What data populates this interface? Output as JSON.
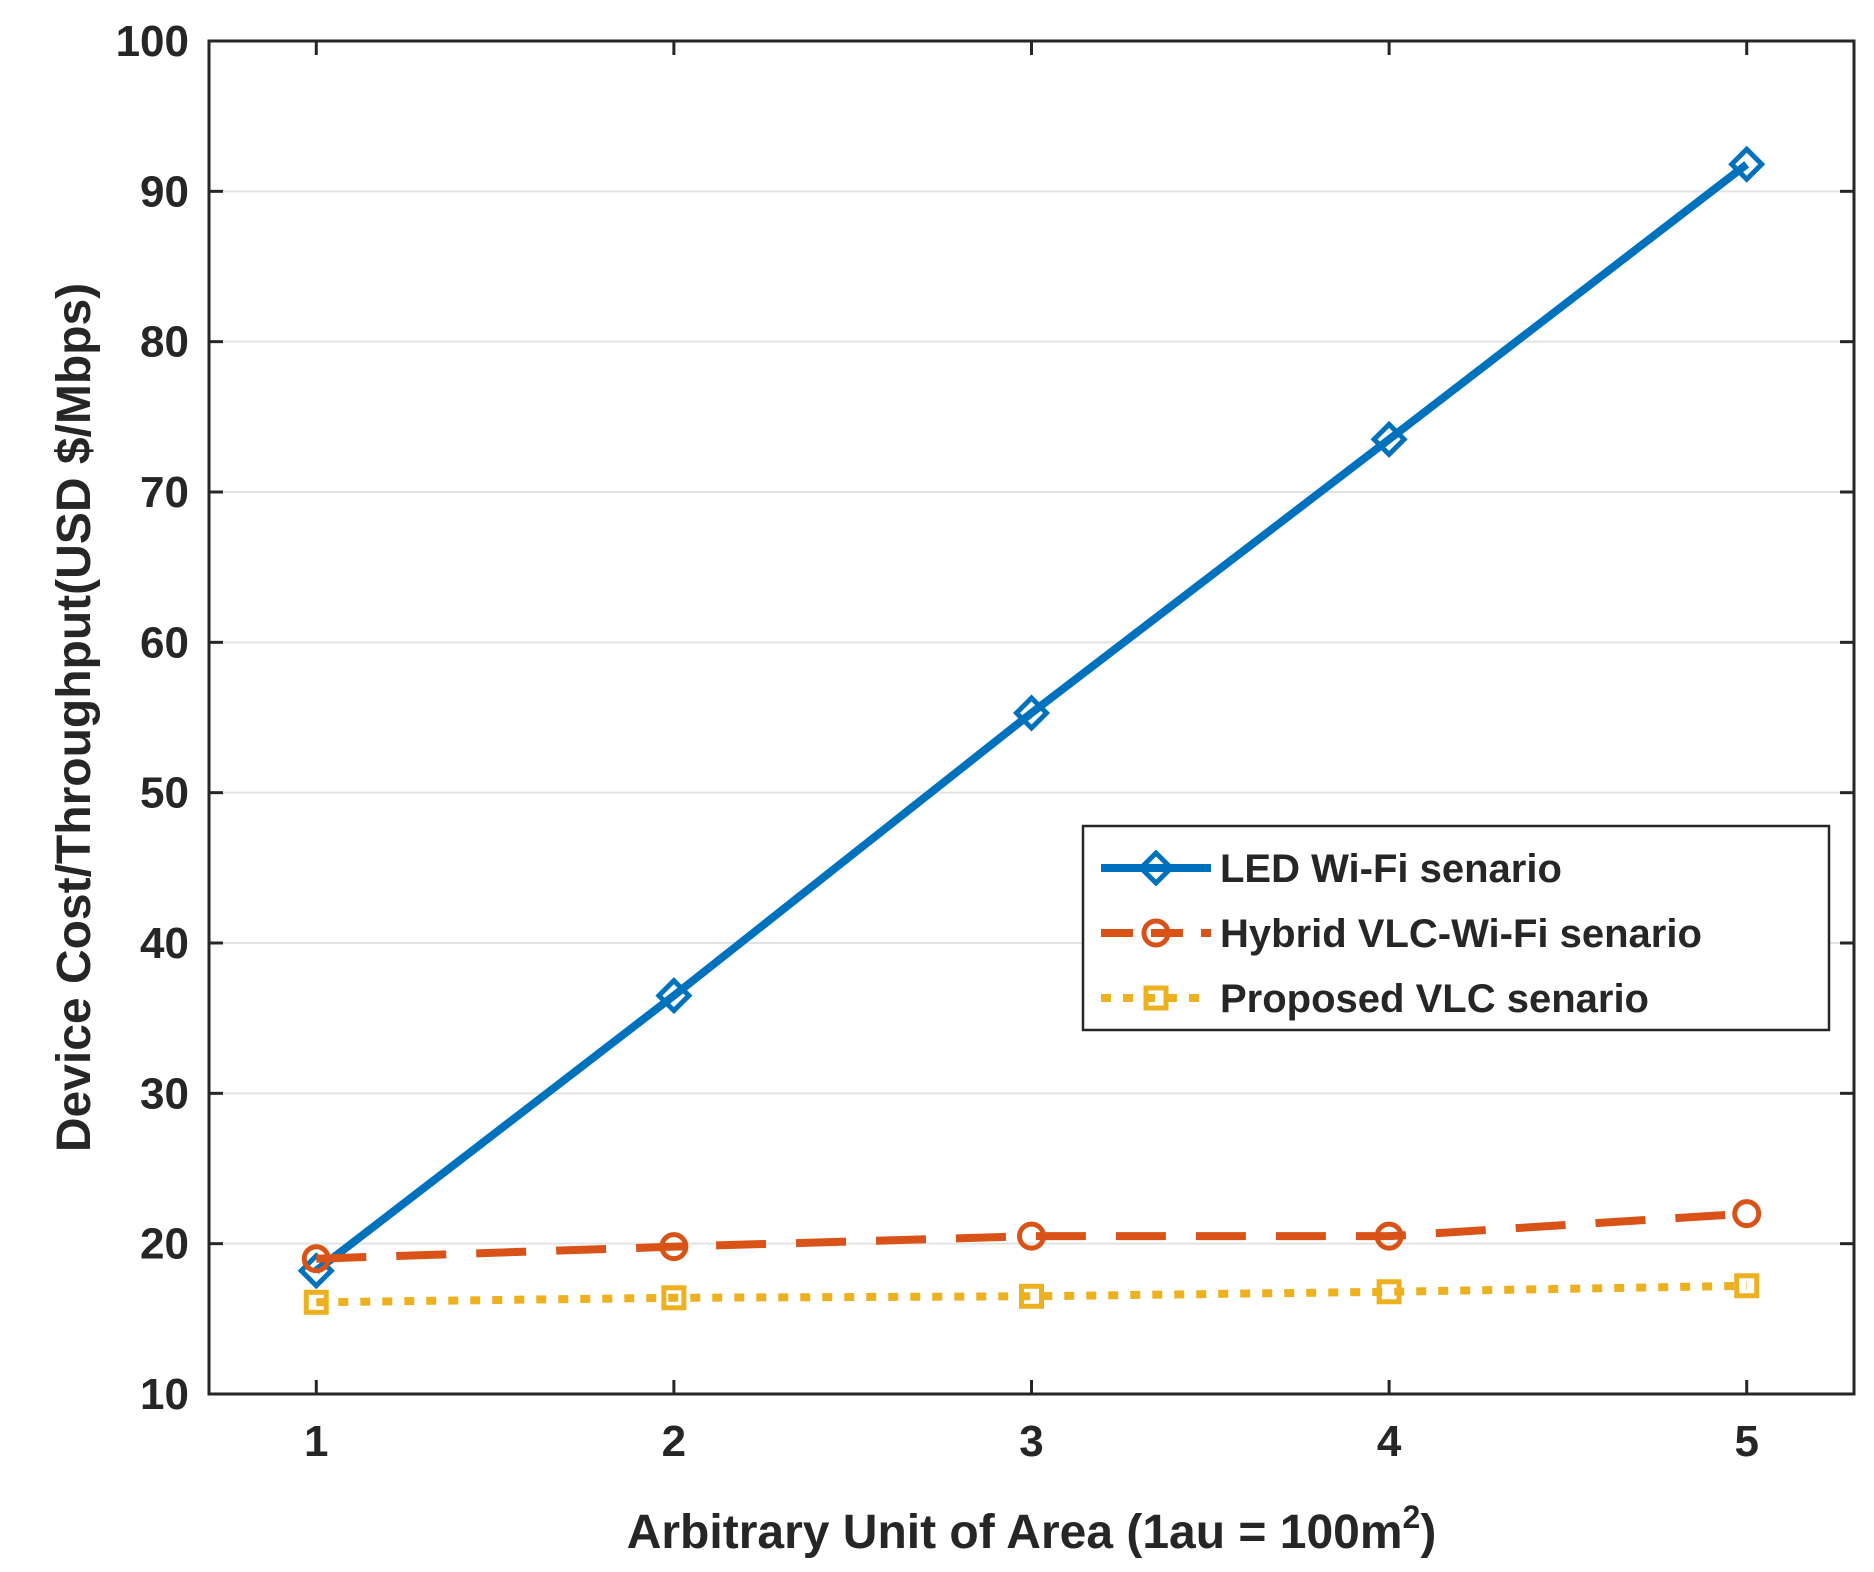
{
  "chart_data": {
    "type": "line",
    "title": "",
    "xlabel": "Arbitrary Unit of Area (1au = 100m",
    "xlabel_sup": "2",
    "xlabel_end": ")",
    "ylabel": "Device Cost/Throughput(USD $/Mbps)",
    "x": [
      1,
      2,
      3,
      4,
      5
    ],
    "xlim": [
      0.7,
      5.3
    ],
    "ylim": [
      10,
      100
    ],
    "xticks": [
      1,
      2,
      3,
      4,
      5
    ],
    "yticks": [
      10,
      20,
      30,
      40,
      50,
      60,
      70,
      80,
      90,
      100
    ],
    "grid": "horizontal",
    "legend_position": "middle-right",
    "series": [
      {
        "name": "LED Wi-Fi senario",
        "values": [
          18.2,
          36.5,
          55.3,
          73.5,
          91.8
        ],
        "color": "#0072BD",
        "dash": "solid",
        "marker": "diamond"
      },
      {
        "name": "Hybrid VLC-Wi-Fi senario",
        "values": [
          19.0,
          19.8,
          20.5,
          20.5,
          22.0
        ],
        "color": "#D95319",
        "dash": "dashed",
        "marker": "circle"
      },
      {
        "name": "Proposed VLC senario",
        "values": [
          16.1,
          16.4,
          16.5,
          16.8,
          17.2
        ],
        "color": "#EDB120",
        "dash": "dotted",
        "marker": "square"
      }
    ]
  }
}
